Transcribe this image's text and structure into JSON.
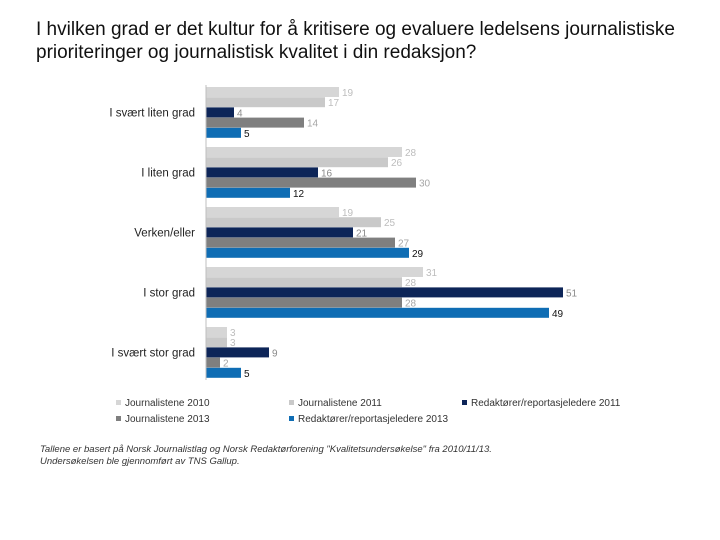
{
  "title": "I hvilken grad er det kultur for å kritisere og evaluere ledelsens journalistiske prioriteringer og journalistisk kvalitet i din redaksjon?",
  "chart_data": {
    "type": "bar",
    "orientation": "horizontal",
    "categories": [
      "I svært liten grad",
      "I liten grad",
      "Verken/eller",
      "I stor grad",
      "I svært stor grad"
    ],
    "series": [
      {
        "name": "Journalistene 2010",
        "color": "#d6d6d6",
        "label_color": "#bdbdbd",
        "values": [
          19,
          28,
          19,
          31,
          3
        ]
      },
      {
        "name": "Journalistene 2011",
        "color": "#c9c9c9",
        "label_color": "#bdbdbd",
        "values": [
          17,
          26,
          25,
          28,
          3
        ]
      },
      {
        "name": "Redaktører/reportasjeledere 2011",
        "color": "#0d2558",
        "label_color": "#8a8a8a",
        "values": [
          4,
          16,
          21,
          51,
          9
        ]
      },
      {
        "name": "Journalistene 2013",
        "color": "#7f7f7f",
        "label_color": "#a6a6a6",
        "values": [
          14,
          30,
          27,
          28,
          2
        ]
      },
      {
        "name": "Redaktører/reportasjeledere 2013",
        "color": "#0f6db4",
        "label_color": "#111111",
        "values": [
          5,
          12,
          29,
          49,
          5
        ]
      }
    ],
    "xlim": [
      0,
      51
    ]
  },
  "legend": [
    "Journalistene 2010",
    "Journalistene 2011",
    "Redaktører/reportasjeledere 2011",
    "Journalistene 2013",
    "Redaktører/reportasjeledere 2013"
  ],
  "footnote": {
    "line1": "Tallene er basert på Norsk Journalistlag og Norsk Redaktørforening \"Kvalitetsundersøkelse\" fra 2010/11/13.",
    "line2": "Undersøkelsen ble gjennomført av TNS Gallup."
  }
}
